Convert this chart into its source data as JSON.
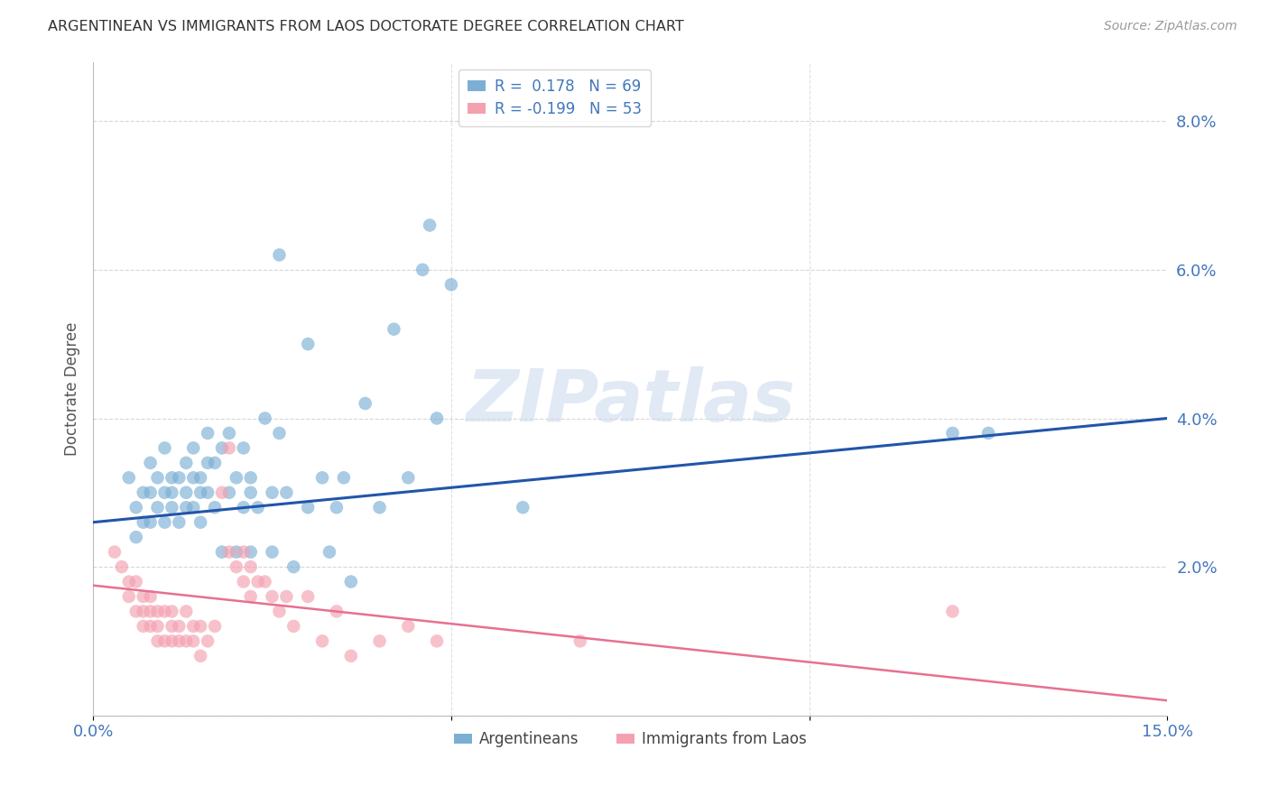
{
  "title": "ARGENTINEAN VS IMMIGRANTS FROM LAOS DOCTORATE DEGREE CORRELATION CHART",
  "source": "Source: ZipAtlas.com",
  "ylabel": "Doctorate Degree",
  "xlim": [
    0.0,
    0.15
  ],
  "ylim": [
    0.0,
    0.088
  ],
  "xticks": [
    0.0,
    0.05,
    0.1,
    0.15
  ],
  "xticklabels": [
    "0.0%",
    "",
    "",
    "15.0%"
  ],
  "yticks": [
    0.0,
    0.02,
    0.04,
    0.06,
    0.08
  ],
  "yticklabels": [
    "",
    "2.0%",
    "4.0%",
    "6.0%",
    "8.0%"
  ],
  "blue_color": "#7BAFD4",
  "pink_color": "#F4A0B0",
  "line_blue": "#2255AA",
  "line_pink": "#E87090",
  "tick_color": "#4477BB",
  "watermark_text": "ZIPatlas",
  "watermark_color": "#C8D8EC",
  "blue_scatter": [
    [
      0.005,
      0.032
    ],
    [
      0.006,
      0.028
    ],
    [
      0.006,
      0.024
    ],
    [
      0.007,
      0.03
    ],
    [
      0.007,
      0.026
    ],
    [
      0.008,
      0.034
    ],
    [
      0.008,
      0.03
    ],
    [
      0.008,
      0.026
    ],
    [
      0.009,
      0.028
    ],
    [
      0.009,
      0.032
    ],
    [
      0.01,
      0.03
    ],
    [
      0.01,
      0.026
    ],
    [
      0.01,
      0.036
    ],
    [
      0.011,
      0.028
    ],
    [
      0.011,
      0.032
    ],
    [
      0.011,
      0.03
    ],
    [
      0.012,
      0.026
    ],
    [
      0.012,
      0.032
    ],
    [
      0.013,
      0.03
    ],
    [
      0.013,
      0.028
    ],
    [
      0.013,
      0.034
    ],
    [
      0.014,
      0.028
    ],
    [
      0.014,
      0.032
    ],
    [
      0.014,
      0.036
    ],
    [
      0.015,
      0.03
    ],
    [
      0.015,
      0.026
    ],
    [
      0.015,
      0.032
    ],
    [
      0.016,
      0.038
    ],
    [
      0.016,
      0.03
    ],
    [
      0.016,
      0.034
    ],
    [
      0.017,
      0.028
    ],
    [
      0.017,
      0.034
    ],
    [
      0.018,
      0.022
    ],
    [
      0.018,
      0.036
    ],
    [
      0.019,
      0.03
    ],
    [
      0.019,
      0.038
    ],
    [
      0.02,
      0.032
    ],
    [
      0.02,
      0.022
    ],
    [
      0.021,
      0.028
    ],
    [
      0.021,
      0.036
    ],
    [
      0.022,
      0.032
    ],
    [
      0.022,
      0.022
    ],
    [
      0.022,
      0.03
    ],
    [
      0.023,
      0.028
    ],
    [
      0.024,
      0.04
    ],
    [
      0.025,
      0.022
    ],
    [
      0.025,
      0.03
    ],
    [
      0.026,
      0.038
    ],
    [
      0.026,
      0.062
    ],
    [
      0.027,
      0.03
    ],
    [
      0.028,
      0.02
    ],
    [
      0.03,
      0.05
    ],
    [
      0.03,
      0.028
    ],
    [
      0.032,
      0.032
    ],
    [
      0.033,
      0.022
    ],
    [
      0.034,
      0.028
    ],
    [
      0.035,
      0.032
    ],
    [
      0.036,
      0.018
    ],
    [
      0.038,
      0.042
    ],
    [
      0.04,
      0.028
    ],
    [
      0.042,
      0.052
    ],
    [
      0.044,
      0.032
    ],
    [
      0.046,
      0.06
    ],
    [
      0.047,
      0.066
    ],
    [
      0.048,
      0.04
    ],
    [
      0.05,
      0.058
    ],
    [
      0.06,
      0.028
    ],
    [
      0.12,
      0.038
    ],
    [
      0.125,
      0.038
    ]
  ],
  "pink_scatter": [
    [
      0.003,
      0.022
    ],
    [
      0.004,
      0.02
    ],
    [
      0.005,
      0.018
    ],
    [
      0.005,
      0.016
    ],
    [
      0.006,
      0.018
    ],
    [
      0.006,
      0.014
    ],
    [
      0.007,
      0.016
    ],
    [
      0.007,
      0.014
    ],
    [
      0.007,
      0.012
    ],
    [
      0.008,
      0.016
    ],
    [
      0.008,
      0.014
    ],
    [
      0.008,
      0.012
    ],
    [
      0.009,
      0.014
    ],
    [
      0.009,
      0.01
    ],
    [
      0.009,
      0.012
    ],
    [
      0.01,
      0.014
    ],
    [
      0.01,
      0.01
    ],
    [
      0.011,
      0.012
    ],
    [
      0.011,
      0.014
    ],
    [
      0.011,
      0.01
    ],
    [
      0.012,
      0.012
    ],
    [
      0.012,
      0.01
    ],
    [
      0.013,
      0.01
    ],
    [
      0.013,
      0.014
    ],
    [
      0.014,
      0.012
    ],
    [
      0.014,
      0.01
    ],
    [
      0.015,
      0.012
    ],
    [
      0.015,
      0.008
    ],
    [
      0.016,
      0.01
    ],
    [
      0.017,
      0.012
    ],
    [
      0.018,
      0.03
    ],
    [
      0.019,
      0.036
    ],
    [
      0.019,
      0.022
    ],
    [
      0.02,
      0.02
    ],
    [
      0.021,
      0.022
    ],
    [
      0.021,
      0.018
    ],
    [
      0.022,
      0.02
    ],
    [
      0.022,
      0.016
    ],
    [
      0.023,
      0.018
    ],
    [
      0.024,
      0.018
    ],
    [
      0.025,
      0.016
    ],
    [
      0.026,
      0.014
    ],
    [
      0.027,
      0.016
    ],
    [
      0.028,
      0.012
    ],
    [
      0.03,
      0.016
    ],
    [
      0.032,
      0.01
    ],
    [
      0.034,
      0.014
    ],
    [
      0.036,
      0.008
    ],
    [
      0.04,
      0.01
    ],
    [
      0.044,
      0.012
    ],
    [
      0.048,
      0.01
    ],
    [
      0.068,
      0.01
    ],
    [
      0.12,
      0.014
    ]
  ],
  "blue_line_x": [
    0.0,
    0.15
  ],
  "blue_line_y": [
    0.026,
    0.04
  ],
  "pink_line_x": [
    0.0,
    0.15
  ],
  "pink_line_y": [
    0.0175,
    0.002
  ],
  "legend1_label": "R =  0.178   N = 69",
  "legend2_label": "R = -0.199   N = 53",
  "bottom_legend1": "Argentineans",
  "bottom_legend2": "Immigrants from Laos"
}
